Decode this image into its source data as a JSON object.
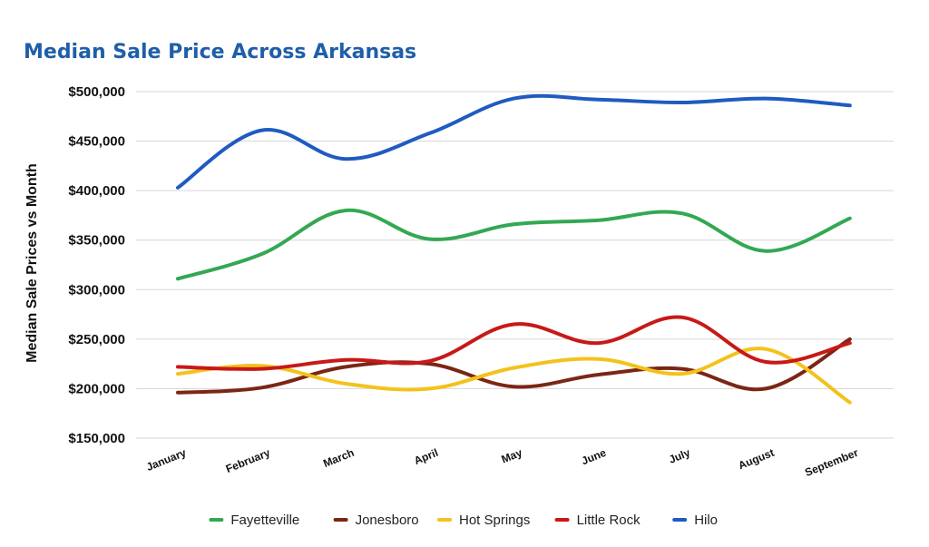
{
  "chart_data": {
    "type": "line",
    "title": "Median Sale Price Across Arkansas",
    "xlabel": "",
    "ylabel": "Median Sale Prices vs Month",
    "categories": [
      "January",
      "February",
      "March",
      "April",
      "May",
      "June",
      "July",
      "August",
      "September"
    ],
    "ylim": [
      150000,
      500000
    ],
    "yticks": [
      150000,
      200000,
      250000,
      300000,
      350000,
      400000,
      450000,
      500000
    ],
    "ytick_labels": [
      "$150,000",
      "$200,000",
      "$250,000",
      "$300,000",
      "$350,000",
      "$400,000",
      "$450,000",
      "$500,000"
    ],
    "grid": true,
    "legend_position": "bottom",
    "series": [
      {
        "name": "Fayetteville",
        "color": "#33a852",
        "values": [
          311000,
          336000,
          380000,
          351000,
          366000,
          370000,
          377000,
          339000,
          372000
        ]
      },
      {
        "name": "Jonesboro",
        "color": "#7b2614",
        "values": [
          196000,
          201000,
          222000,
          225000,
          202000,
          214000,
          220000,
          200000,
          250000
        ]
      },
      {
        "name": "Hot Springs",
        "color": "#f3c21b",
        "values": [
          215000,
          223000,
          205000,
          200000,
          221000,
          230000,
          215000,
          240000,
          186000
        ]
      },
      {
        "name": "Little Rock",
        "color": "#c81818",
        "values": [
          222000,
          220000,
          229000,
          228000,
          265000,
          246000,
          272000,
          227000,
          246000
        ]
      },
      {
        "name": "Hilo",
        "color": "#1f5bc0",
        "values": [
          403000,
          461000,
          432000,
          458000,
          493000,
          492000,
          489000,
          493000,
          486000
        ]
      }
    ]
  }
}
